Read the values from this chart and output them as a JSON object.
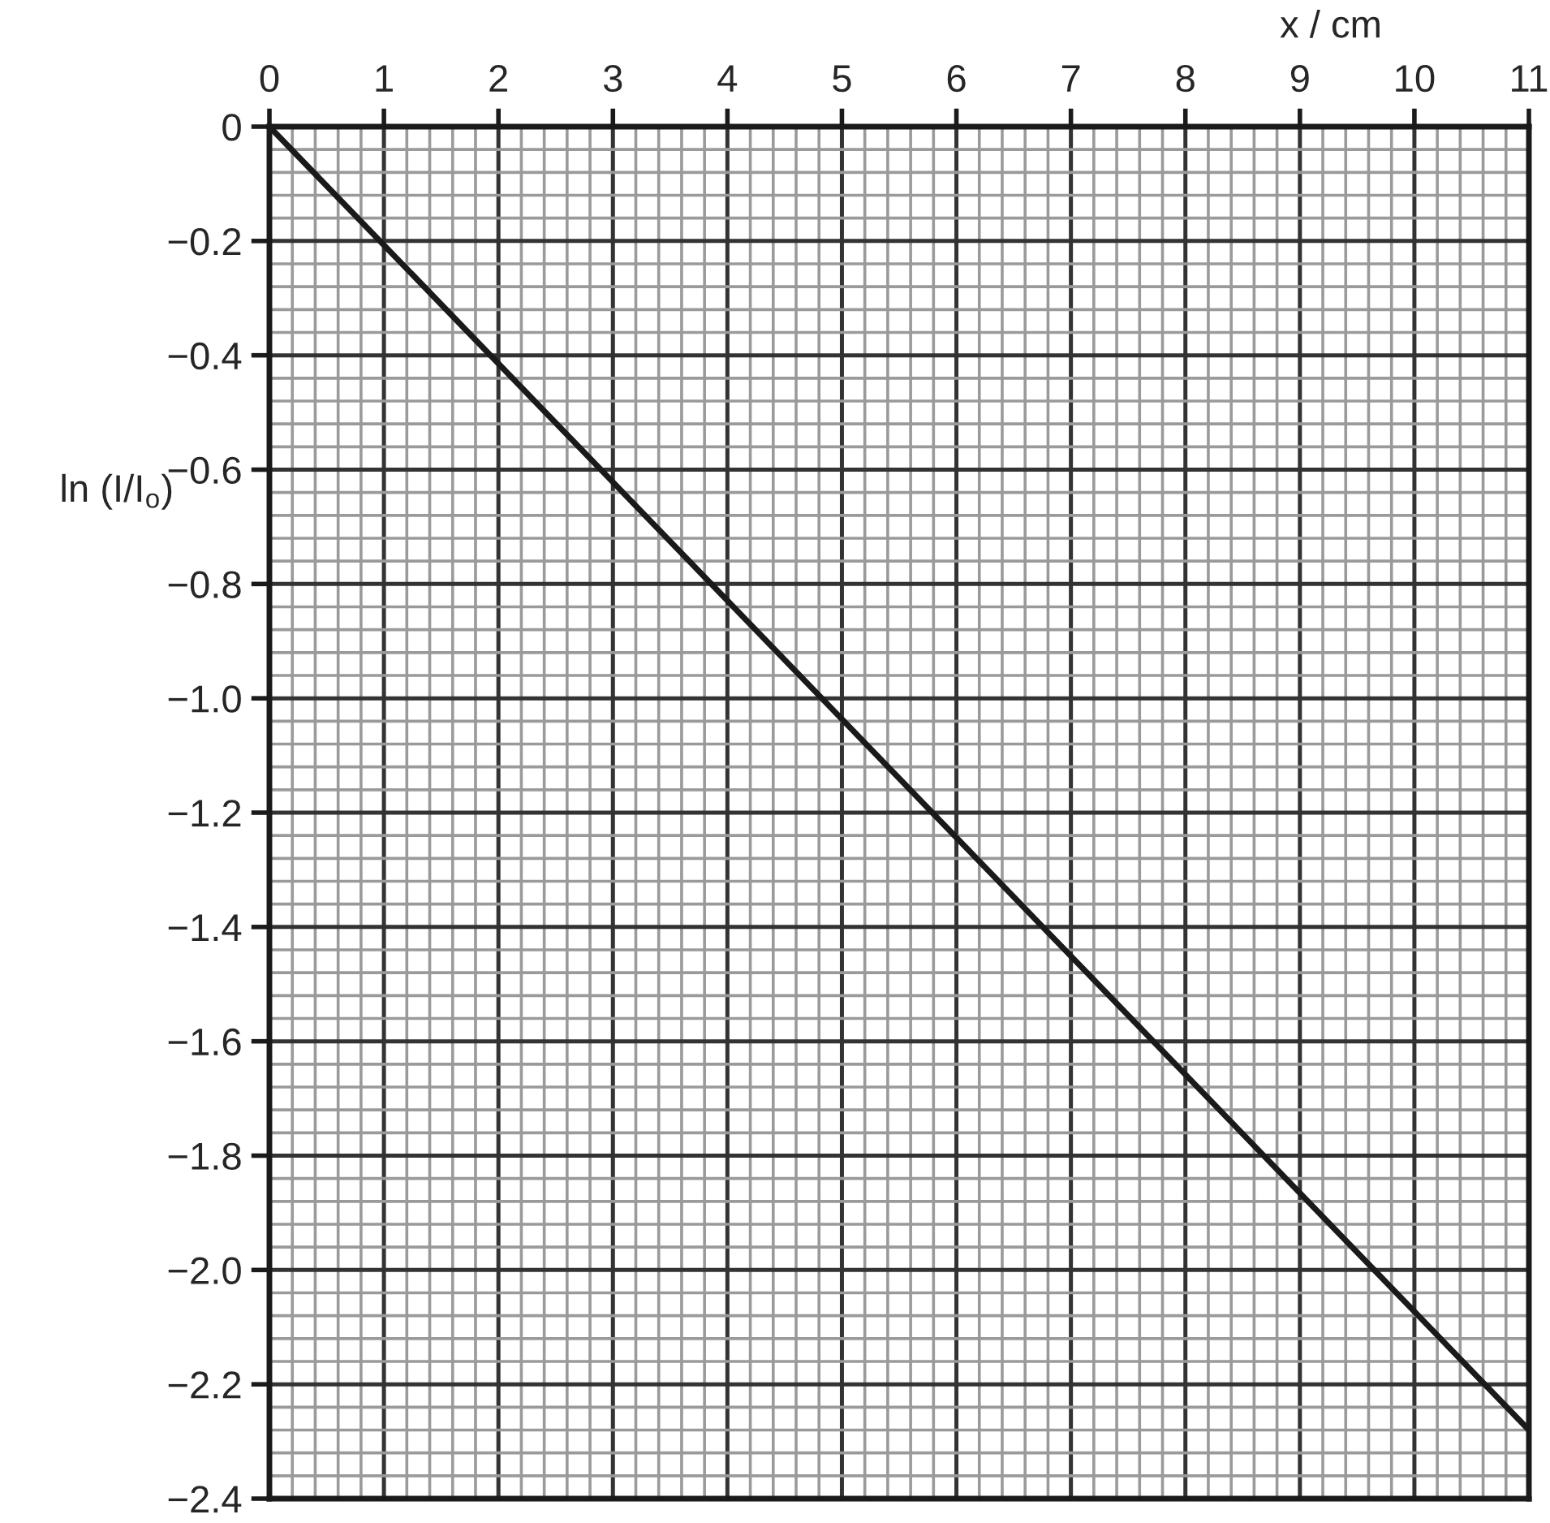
{
  "chart_data": {
    "type": "line",
    "xlabel": "x / cm",
    "ylabel": "ln (I/I$_{o}$)",
    "x": [
      0,
      11
    ],
    "series": [
      {
        "color": "#1a1a1a",
        "values": [
          0,
          -2.28
        ]
      }
    ],
    "xlim": [
      0,
      11
    ],
    "xticks": [
      0,
      1,
      2,
      3,
      4,
      5,
      6,
      7,
      8,
      9,
      10,
      11
    ],
    "ylim": [
      -2.4,
      0
    ],
    "yticks": [
      0,
      {
        "value": -0.2,
        "label": "−0.2"
      },
      {
        "value": -0.4,
        "label": "−0.4"
      },
      {
        "value": -0.6,
        "label": "−0.6"
      },
      {
        "value": -0.8,
        "label": "−0.8"
      },
      {
        "value": -1.0,
        "label": "−1.0"
      },
      {
        "value": -1.2,
        "label": "−1.2"
      },
      {
        "value": -1.4,
        "label": "−1.4"
      },
      {
        "value": -1.6,
        "label": "−1.6"
      },
      {
        "value": -1.8,
        "label": "−1.8"
      },
      {
        "value": -2.0,
        "label": "−2.0"
      },
      {
        "value": -2.2,
        "label": "−2.2"
      },
      {
        "value": -2.4,
        "label": "−2.4"
      }
    ],
    "grid": true
  }
}
